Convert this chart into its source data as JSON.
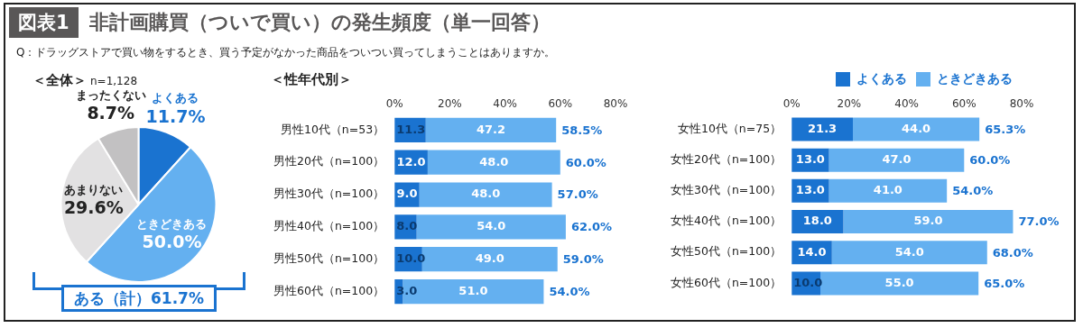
{
  "chart_data": [
    {
      "type": "pie",
      "title": "＜全体＞",
      "subtitle": "n=1,128",
      "categories": [
        "よくある",
        "ときどきある",
        "あまりない",
        "まったくない"
      ],
      "values": [
        11.7,
        50.0,
        29.6,
        8.7
      ],
      "colors": [
        "#1a73d0",
        "#64b0f0",
        "#e2e1e2",
        "#c2c1c2"
      ],
      "value_labels": [
        "11.7%",
        "50.0%",
        "29.6%",
        "8.7%"
      ],
      "annotations": [
        "図表1",
        "非計画購買（ついで買い）の発生頻度（単一回答）",
        "Q：ドラッグストアで買い物をするとき、買う予定がなかった商品をついつい買ってしまうことはありますか。",
        "ある（計）61.7%"
      ]
    },
    {
      "type": "bar",
      "orientation": "horizontal",
      "stacked": true,
      "title": "＜性年代別＞",
      "categories": [
        "男性10代（n=53）",
        "男性20代（n=100）",
        "男性30代（n=100）",
        "男性40代（n=100）",
        "男性50代（n=100）",
        "男性60代（n=100）"
      ],
      "series": [
        {
          "color": "#1a73d0",
          "values": [
            11.3,
            12.0,
            9.0,
            8.0,
            10.0,
            3.0
          ],
          "value_labels": [
            "11.3",
            "12.0",
            "9.0",
            "8.0",
            "10.0",
            "3.0"
          ]
        },
        {
          "color": "#64b0f0",
          "values": [
            47.2,
            48.0,
            48.0,
            54.0,
            49.0,
            51.0
          ],
          "value_labels": [
            "47.2",
            "48.0",
            "48.0",
            "54.0",
            "49.0",
            "51.0"
          ]
        }
      ],
      "totals": [
        "58.5%",
        "60.0%",
        "57.0%",
        "62.0%",
        "59.0%",
        "54.0%"
      ],
      "xlim": [
        0,
        80
      ],
      "xticks": [
        {
          "value": 0,
          "label": "0%"
        },
        {
          "value": 20,
          "label": "20%"
        },
        {
          "value": 40,
          "label": "40%"
        },
        {
          "value": 60,
          "label": "60%"
        },
        {
          "value": 80,
          "label": "80%"
        }
      ]
    },
    {
      "type": "bar",
      "orientation": "horizontal",
      "stacked": true,
      "legend": "top right",
      "categories": [
        "女性10代（n=75）",
        "女性20代（n=100）",
        "女性30代（n=100）",
        "女性40代（n=100）",
        "女性50代（n=100）",
        "女性60代（n=100）"
      ],
      "series": [
        {
          "name": "よくある",
          "color": "#1a73d0",
          "values": [
            21.3,
            13.0,
            13.0,
            18.0,
            14.0,
            10.0
          ],
          "value_labels": [
            "21.3",
            "13.0",
            "13.0",
            "18.0",
            "14.0",
            "10.0"
          ]
        },
        {
          "name": "ときどきある",
          "color": "#64b0f0",
          "values": [
            44.0,
            47.0,
            41.0,
            59.0,
            54.0,
            55.0
          ],
          "value_labels": [
            "44.0",
            "47.0",
            "41.0",
            "59.0",
            "54.0",
            "55.0"
          ]
        }
      ],
      "totals": [
        "65.3%",
        "60.0%",
        "54.0%",
        "77.0%",
        "68.0%",
        "65.0%"
      ],
      "xlim": [
        0,
        80
      ],
      "xticks": [
        {
          "value": 0,
          "label": "0%"
        },
        {
          "value": 20,
          "label": "20%"
        },
        {
          "value": 40,
          "label": "40%"
        },
        {
          "value": 60,
          "label": "60%"
        },
        {
          "value": 80,
          "label": "80%"
        }
      ]
    }
  ]
}
